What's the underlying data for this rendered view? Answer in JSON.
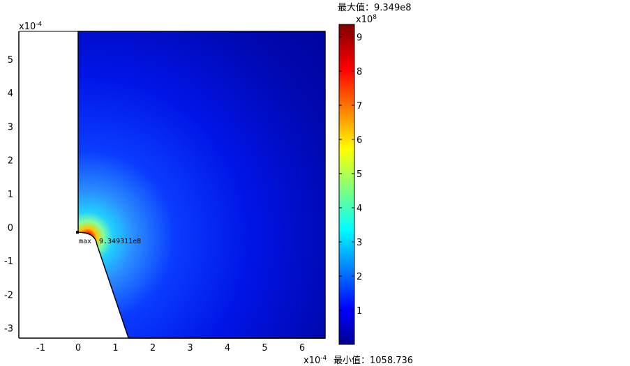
{
  "chart_data": {
    "type": "heatmap",
    "plot_kind": "2D surface plot",
    "x_multiplier": "x10-4",
    "y_multiplier": "x10-4",
    "xlim": [
      -1.6,
      6.62
    ],
    "ylim": [
      -3.3,
      5.83
    ],
    "x_ticks": [
      "-1",
      "0",
      "1",
      "2",
      "3",
      "4",
      "5",
      "6"
    ],
    "y_ticks": [
      "-3",
      "-2",
      "-1",
      "0",
      "1",
      "2",
      "3",
      "4",
      "5"
    ],
    "domain_outline": [
      [
        0,
        5.83
      ],
      [
        0,
        -0.15
      ],
      [
        0.5,
        -0.5
      ],
      [
        1.35,
        -3.3
      ],
      [
        6.62,
        -3.3
      ],
      [
        6.62,
        5.83
      ]
    ],
    "colormap": "jet",
    "colorbar": {
      "multiplier": "x10",
      "multiplier_exp": "8",
      "ticks": [
        "1",
        "2",
        "3",
        "4",
        "5",
        "6",
        "7",
        "8",
        "9"
      ],
      "range": [
        0,
        9.349
      ]
    },
    "max_label": "最大值：9.349e8",
    "min_label": "最小值：1058.736",
    "annotation": {
      "marker": "max",
      "value": "9.349311e8",
      "at": [
        0.05,
        -0.25
      ]
    }
  }
}
